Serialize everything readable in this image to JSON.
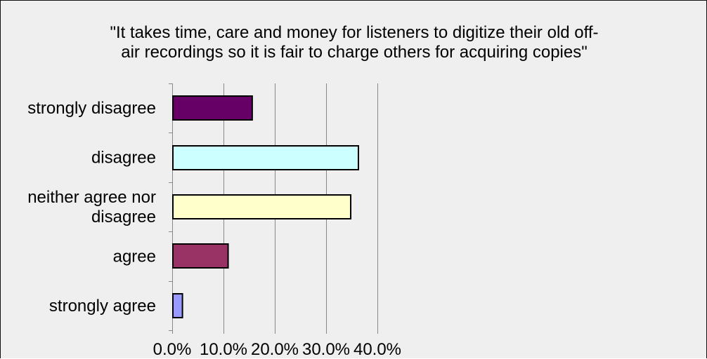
{
  "chart_data": {
    "type": "bar",
    "orientation": "horizontal",
    "title_lines": [
      "\"It takes time, care and money for listeners to digitize their old off-",
      "air recordings so it is fair to charge others for acquiring copies\""
    ],
    "categories": [
      "strongly disagree",
      "disagree",
      "neither agree nor disagree",
      "agree",
      "strongly agree"
    ],
    "category_label_lines": [
      [
        "strongly disagree"
      ],
      [
        "disagree"
      ],
      [
        "neither agree nor",
        "disagree"
      ],
      [
        "agree"
      ],
      [
        "strongly agree"
      ]
    ],
    "values": [
      15.6,
      36.3,
      34.8,
      10.9,
      2.0
    ],
    "bar_colors": [
      "#660066",
      "#ccffff",
      "#ffffcc",
      "#993366",
      "#9999ff"
    ],
    "xlim": [
      0,
      40
    ],
    "x_ticks": [
      0,
      10,
      20,
      30,
      40
    ],
    "x_tick_labels": [
      "0.0%",
      "10.0%",
      "20.0%",
      "30.0%",
      "40.0%"
    ],
    "xlabel": "",
    "ylabel": "",
    "grid": "vertical",
    "legend": "none"
  },
  "colors": {
    "background": "#efefef",
    "gridline": "#888888",
    "bar_outline": "#000000"
  }
}
